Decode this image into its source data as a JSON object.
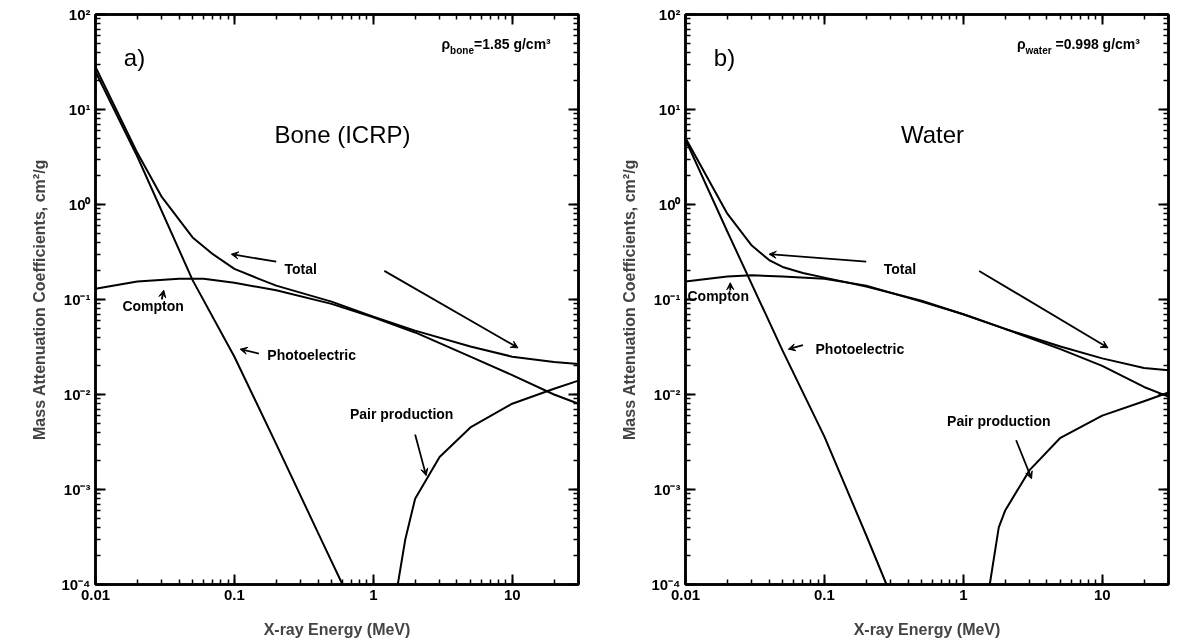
{
  "chart_data": [
    {
      "type": "line",
      "title": "Bone (ICRP)",
      "xlabel": "X-ray Energy (MeV)",
      "ylabel": "Mass Attenuation Coefficients, cm²/g",
      "log": "xy",
      "grid": false,
      "marker": "none",
      "line_style": "solid",
      "annotations": [
        "a)",
        "ρ$_{bone}$=1.85 g/cm³"
      ],
      "xlim": [
        0.01,
        30
      ],
      "xticks": [
        0.01,
        0.1,
        1,
        10
      ],
      "ylim": [
        0.0001,
        100
      ],
      "yticks": [
        {
          "value": 0.0001,
          "label": "10⁻⁴"
        },
        {
          "value": 0.001,
          "label": "10⁻³"
        },
        {
          "value": 0.01,
          "label": "10⁻²"
        },
        {
          "value": 0.1,
          "label": "10⁻¹"
        },
        {
          "value": 1,
          "label": "10⁰"
        },
        {
          "value": 10,
          "label": "10¹"
        },
        {
          "value": 100,
          "label": "10²"
        }
      ],
      "series": [
        {
          "name": "Total",
          "color": "#000000",
          "x": [
            0.01,
            0.02,
            0.03,
            0.05,
            0.07,
            0.1,
            0.15,
            0.2,
            0.5,
            1,
            2,
            5,
            10,
            20,
            30
          ],
          "values": [
            28,
            3.5,
            1.2,
            0.45,
            0.3,
            0.21,
            0.165,
            0.14,
            0.095,
            0.066,
            0.047,
            0.032,
            0.025,
            0.022,
            0.021
          ]
        },
        {
          "name": "Compton",
          "color": "#000000",
          "x": [
            0.01,
            0.02,
            0.04,
            0.06,
            0.1,
            0.2,
            0.5,
            1,
            2,
            5,
            10,
            20,
            30
          ],
          "values": [
            0.13,
            0.155,
            0.165,
            0.165,
            0.15,
            0.125,
            0.09,
            0.065,
            0.045,
            0.025,
            0.016,
            0.01,
            0.008
          ]
        },
        {
          "name": "Photoelectric",
          "color": "#000000",
          "x": [
            0.01,
            0.02,
            0.05,
            0.1,
            0.2,
            0.4,
            0.6
          ],
          "values": [
            25,
            3.2,
            0.16,
            0.025,
            0.003,
            0.00035,
            0.0001
          ]
        },
        {
          "name": "Pair production",
          "color": "#000000",
          "x": [
            1.5,
            1.7,
            2,
            3,
            5,
            10,
            20,
            30
          ],
          "values": [
            0.0001,
            0.0003,
            0.0008,
            0.0022,
            0.0045,
            0.008,
            0.0115,
            0.014
          ]
        }
      ]
    },
    {
      "type": "line",
      "title": "Water",
      "xlabel": "X-ray Energy (MeV)",
      "ylabel": "Mass Attenuation Coefficients, cm²/g",
      "log": "xy",
      "grid": false,
      "marker": "none",
      "line_style": "solid",
      "annotations": [
        "b)",
        "ρ$_{water}$=0.998 g/cm³"
      ],
      "xlim": [
        0.01,
        30
      ],
      "xticks": [
        0.01,
        0.1,
        1,
        10
      ],
      "ylim": [
        0.0001,
        100
      ],
      "yticks": [
        {
          "value": 0.0001,
          "label": "10⁻⁴"
        },
        {
          "value": 0.001,
          "label": "10⁻³"
        },
        {
          "value": 0.01,
          "label": "10⁻²"
        },
        {
          "value": 0.1,
          "label": "10⁻¹"
        },
        {
          "value": 1,
          "label": "10⁰"
        },
        {
          "value": 10,
          "label": "10¹"
        },
        {
          "value": 100,
          "label": "10²"
        }
      ],
      "series": [
        {
          "name": "Total",
          "color": "#000000",
          "x": [
            0.01,
            0.02,
            0.03,
            0.04,
            0.05,
            0.07,
            0.1,
            0.2,
            0.5,
            1,
            2,
            5,
            10,
            20,
            30
          ],
          "values": [
            5,
            0.8,
            0.37,
            0.26,
            0.22,
            0.19,
            0.17,
            0.137,
            0.097,
            0.07,
            0.049,
            0.032,
            0.024,
            0.019,
            0.018
          ]
        },
        {
          "name": "Compton",
          "color": "#000000",
          "x": [
            0.01,
            0.02,
            0.03,
            0.05,
            0.1,
            0.2,
            0.5,
            1,
            2,
            5,
            10,
            20,
            30
          ],
          "values": [
            0.155,
            0.175,
            0.18,
            0.175,
            0.165,
            0.14,
            0.095,
            0.07,
            0.049,
            0.03,
            0.02,
            0.012,
            0.0095
          ]
        },
        {
          "name": "Photoelectric",
          "color": "#000000",
          "x": [
            0.01,
            0.02,
            0.05,
            0.1,
            0.2,
            0.28
          ],
          "values": [
            4.8,
            0.52,
            0.029,
            0.0036,
            0.00033,
            0.0001
          ]
        },
        {
          "name": "Pair production",
          "color": "#000000",
          "x": [
            1.55,
            1.8,
            2,
            3,
            5,
            10,
            20,
            30
          ],
          "values": [
            0.0001,
            0.0004,
            0.0006,
            0.0016,
            0.0035,
            0.006,
            0.0085,
            0.0105
          ]
        }
      ]
    }
  ]
}
